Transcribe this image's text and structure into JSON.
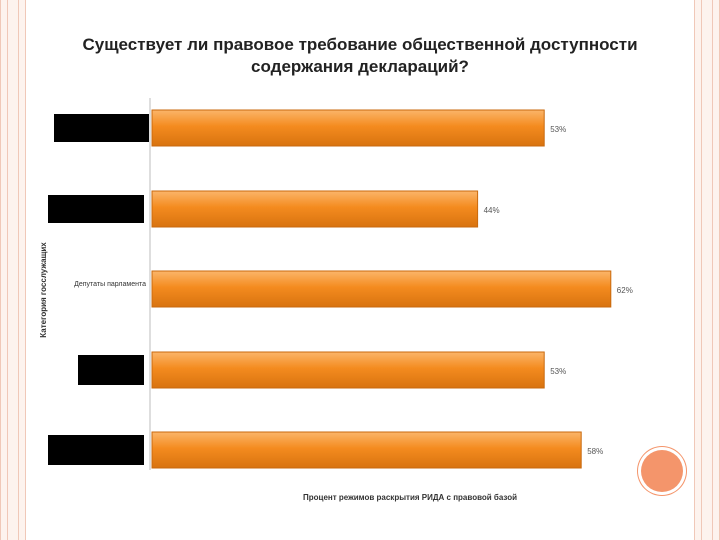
{
  "colors": {
    "bar": "#f48b1f",
    "bar_light": "#fbb56a",
    "bar_dark": "#c9690e",
    "frame": "#f0c8b8",
    "accent_circle": "#f4956b"
  },
  "chart_data": {
    "type": "bar",
    "orientation": "horizontal",
    "title": "Существует ли правовое требование общественной доступности содержания деклараций?",
    "categories": [
      "",
      "",
      "Депутаты парламента",
      "",
      ""
    ],
    "values": [
      53,
      44,
      62,
      53,
      58
    ],
    "data_labels": [
      "53%",
      "44%",
      "62%",
      "53%",
      "58%"
    ],
    "xlabel": "Процент режимов раскрытия РИДА с правовой базой",
    "ylabel": "Категория госслужащих",
    "xlim": [
      0,
      100
    ],
    "grid": false,
    "legend": "none"
  }
}
